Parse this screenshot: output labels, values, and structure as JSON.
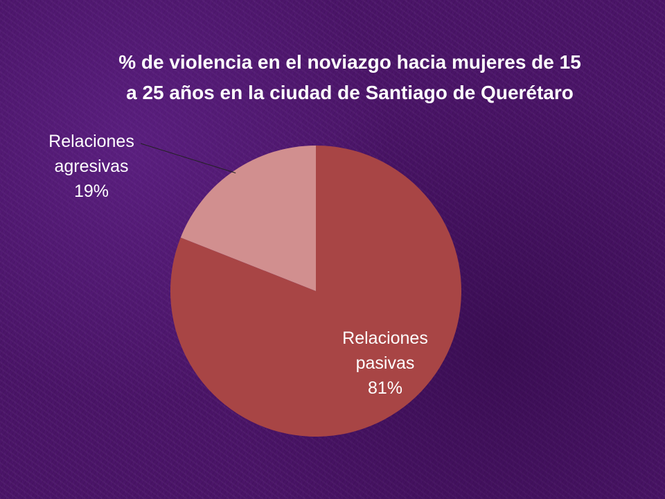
{
  "chart_data": {
    "type": "pie",
    "title": "% de violencia en el noviazgo hacia mujeres de 15 a 25 años en la ciudad de Santiago de Querétaro",
    "slices": [
      {
        "label": "Relaciones pasivas",
        "value": 81,
        "value_label": "81%",
        "color": "#a84545"
      },
      {
        "label": "Relaciones agresivas",
        "value": 19,
        "value_label": "19%",
        "color": "#d18f8f"
      }
    ],
    "start_angle": "12 o'clock",
    "direction": "clockwise",
    "legend": "none",
    "label_placement": {
      "pasivas": "inside",
      "agresivas": "outside-top-left with leader line"
    }
  },
  "colors": {
    "background": "#4a1467",
    "text": "#ffffff",
    "leader_line": "#222222"
  }
}
